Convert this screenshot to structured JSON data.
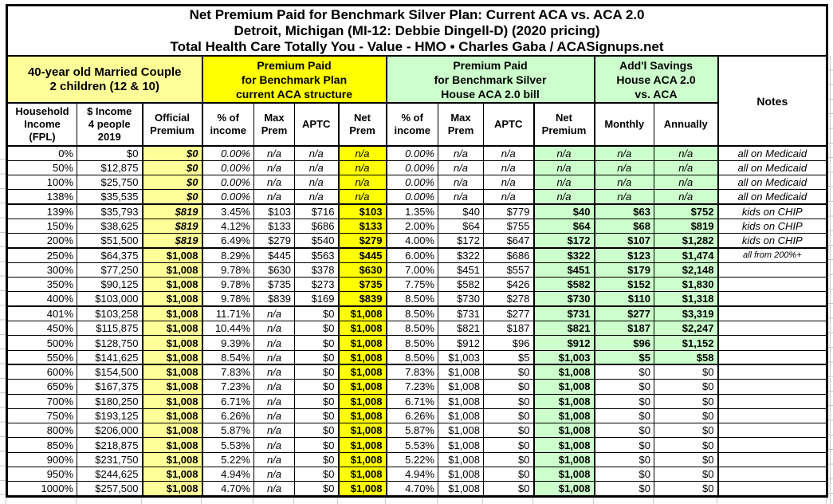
{
  "chart_data": {
    "type": "table",
    "title_lines": [
      "Net Premium Paid for Benchmark Silver Plan: Current ACA vs. ACA 2.0",
      "Detroit, Michigan (MI-12: Debbie Dingell-D) (2020 pricing)",
      "Total Health Care Totally You - Value - HMO • Charles Gaba / ACASignups.net"
    ],
    "group_headers": [
      {
        "key": "household",
        "label": "40-year old Married Couple\n2 children (12 & 10)"
      },
      {
        "key": "current-aca",
        "label": "Premium Paid\nfor Benchmark Plan\ncurrent ACA structure"
      },
      {
        "key": "aca2",
        "label": "Premium Paid\nfor Benchmark Silver\nHouse ACA 2.0 bill"
      },
      {
        "key": "savings",
        "label": "Add'l Savings\nHouse ACA 2.0\nvs. ACA"
      },
      {
        "key": "notes",
        "label": "Notes"
      }
    ],
    "columns": [
      {
        "key": "fpl",
        "label": "Household\nIncome\n(FPL)"
      },
      {
        "key": "income",
        "label": "$ Income\n4 people\n2019"
      },
      {
        "key": "official",
        "label": "Official\nPremium"
      },
      {
        "key": "aca-pct",
        "label": "% of\nincome"
      },
      {
        "key": "aca-max",
        "label": "Max\nPrem"
      },
      {
        "key": "aca-aptc",
        "label": "APTC"
      },
      {
        "key": "aca-net",
        "label": "Net\nPrem"
      },
      {
        "key": "aca2-pct",
        "label": "% of\nincome"
      },
      {
        "key": "aca2-max",
        "label": "Max\nPrem"
      },
      {
        "key": "aca2-aptc",
        "label": "APTC"
      },
      {
        "key": "aca2-net",
        "label": "Net\nPremium"
      },
      {
        "key": "monthly",
        "label": "Monthly"
      },
      {
        "key": "annually",
        "label": "Annually"
      }
    ],
    "colors": {
      "pale_yellow": "#FFFF99",
      "bright_yellow": "#FFFF00",
      "light_green": "#CCFFCC",
      "border": "#000000",
      "margin_gridline": "#C9C9C9"
    },
    "rows": [
      {
        "fpl": "0%",
        "income": "$0",
        "official": "$0",
        "official_italic": true,
        "aca": [
          "0.00%",
          "n/a",
          "n/a",
          "n/a"
        ],
        "aca2": [
          "0.00%",
          "n/a",
          "n/a",
          "n/a"
        ],
        "savings": [
          "n/a",
          "n/a"
        ],
        "notes": "all on Medicaid",
        "style": "medicaid",
        "thick_bottom": false,
        "notes_small": false
      },
      {
        "fpl": "50%",
        "income": "$12,875",
        "official": "$0",
        "official_italic": true,
        "aca": [
          "0.00%",
          "n/a",
          "n/a",
          "n/a"
        ],
        "aca2": [
          "0.00%",
          "n/a",
          "n/a",
          "n/a"
        ],
        "savings": [
          "n/a",
          "n/a"
        ],
        "notes": "all on Medicaid",
        "style": "medicaid",
        "thick_bottom": false,
        "notes_small": false
      },
      {
        "fpl": "100%",
        "income": "$25,750",
        "official": "$0",
        "official_italic": true,
        "aca": [
          "0.00%",
          "n/a",
          "n/a",
          "n/a"
        ],
        "aca2": [
          "0.00%",
          "n/a",
          "n/a",
          "n/a"
        ],
        "savings": [
          "n/a",
          "n/a"
        ],
        "notes": "all on Medicaid",
        "style": "medicaid",
        "thick_bottom": false,
        "notes_small": false
      },
      {
        "fpl": "138%",
        "income": "$35,535",
        "official": "$0",
        "official_italic": true,
        "aca": [
          "0.00%",
          "n/a",
          "n/a",
          "n/a"
        ],
        "aca2": [
          "0.00%",
          "n/a",
          "n/a",
          "n/a"
        ],
        "savings": [
          "n/a",
          "n/a"
        ],
        "notes": "all on Medicaid",
        "style": "medicaid",
        "thick_bottom": true,
        "notes_small": false
      },
      {
        "fpl": "139%",
        "income": "$35,793",
        "official": "$819",
        "official_italic": true,
        "aca": [
          "3.45%",
          "$103",
          "$716",
          "$103"
        ],
        "aca2": [
          "1.35%",
          "$40",
          "$779",
          "$40"
        ],
        "savings": [
          "$63",
          "$752"
        ],
        "notes": "kids on CHIP",
        "style": "chip",
        "thick_bottom": false,
        "notes_small": false
      },
      {
        "fpl": "150%",
        "income": "$38,625",
        "official": "$819",
        "official_italic": true,
        "aca": [
          "4.12%",
          "$133",
          "$686",
          "$133"
        ],
        "aca2": [
          "2.00%",
          "$64",
          "$755",
          "$64"
        ],
        "savings": [
          "$68",
          "$819"
        ],
        "notes": "kids on CHIP",
        "style": "chip",
        "thick_bottom": false,
        "notes_small": false
      },
      {
        "fpl": "200%",
        "income": "$51,500",
        "official": "$819",
        "official_italic": true,
        "aca": [
          "6.49%",
          "$279",
          "$540",
          "$279"
        ],
        "aca2": [
          "4.00%",
          "$172",
          "$647",
          "$172"
        ],
        "savings": [
          "$107",
          "$1,282"
        ],
        "notes": "kids on CHIP",
        "style": "chip",
        "thick_bottom": true,
        "notes_small": false
      },
      {
        "fpl": "250%",
        "income": "$64,375",
        "official": "$1,008",
        "official_italic": false,
        "aca": [
          "8.29%",
          "$445",
          "$563",
          "$445"
        ],
        "aca2": [
          "6.00%",
          "$322",
          "$686",
          "$322"
        ],
        "savings": [
          "$123",
          "$1,474"
        ],
        "notes": "all from 200%+",
        "style": "normal",
        "thick_bottom": false,
        "notes_small": true
      },
      {
        "fpl": "300%",
        "income": "$77,250",
        "official": "$1,008",
        "official_italic": false,
        "aca": [
          "9.78%",
          "$630",
          "$378",
          "$630"
        ],
        "aca2": [
          "7.00%",
          "$451",
          "$557",
          "$451"
        ],
        "savings": [
          "$179",
          "$2,148"
        ],
        "notes": "",
        "style": "normal",
        "thick_bottom": false,
        "notes_small": false
      },
      {
        "fpl": "350%",
        "income": "$90,125",
        "official": "$1,008",
        "official_italic": false,
        "aca": [
          "9.78%",
          "$735",
          "$273",
          "$735"
        ],
        "aca2": [
          "7.75%",
          "$582",
          "$426",
          "$582"
        ],
        "savings": [
          "$152",
          "$1,830"
        ],
        "notes": "",
        "style": "normal",
        "thick_bottom": false,
        "notes_small": false
      },
      {
        "fpl": "400%",
        "income": "$103,000",
        "official": "$1,008",
        "official_italic": false,
        "aca": [
          "9.78%",
          "$839",
          "$169",
          "$839"
        ],
        "aca2": [
          "8.50%",
          "$730",
          "$278",
          "$730"
        ],
        "savings": [
          "$110",
          "$1,318"
        ],
        "notes": "",
        "style": "normal",
        "thick_bottom": true,
        "notes_small": false
      },
      {
        "fpl": "401%",
        "income": "$103,258",
        "official": "$1,008",
        "official_italic": false,
        "aca": [
          "11.71%",
          "n/a",
          "$0",
          "$1,008"
        ],
        "aca2": [
          "8.50%",
          "$731",
          "$277",
          "$731"
        ],
        "savings": [
          "$277",
          "$3,319"
        ],
        "notes": "",
        "style": "normal",
        "thick_bottom": false,
        "notes_small": false
      },
      {
        "fpl": "450%",
        "income": "$115,875",
        "official": "$1,008",
        "official_italic": false,
        "aca": [
          "10.44%",
          "n/a",
          "$0",
          "$1,008"
        ],
        "aca2": [
          "8.50%",
          "$821",
          "$187",
          "$821"
        ],
        "savings": [
          "$187",
          "$2,247"
        ],
        "notes": "",
        "style": "normal",
        "thick_bottom": false,
        "notes_small": false
      },
      {
        "fpl": "500%",
        "income": "$128,750",
        "official": "$1,008",
        "official_italic": false,
        "aca": [
          "9.39%",
          "n/a",
          "$0",
          "$1,008"
        ],
        "aca2": [
          "8.50%",
          "$912",
          "$96",
          "$912"
        ],
        "savings": [
          "$96",
          "$1,152"
        ],
        "notes": "",
        "style": "normal",
        "thick_bottom": false,
        "notes_small": false
      },
      {
        "fpl": "550%",
        "income": "$141,625",
        "official": "$1,008",
        "official_italic": false,
        "aca": [
          "8.54%",
          "n/a",
          "$0",
          "$1,008"
        ],
        "aca2": [
          "8.50%",
          "$1,003",
          "$5",
          "$1,003"
        ],
        "savings": [
          "$5",
          "$58"
        ],
        "notes": "",
        "style": "normal",
        "thick_bottom": true,
        "notes_small": false
      },
      {
        "fpl": "600%",
        "income": "$154,500",
        "official": "$1,008",
        "official_italic": false,
        "aca": [
          "7.83%",
          "n/a",
          "$0",
          "$1,008"
        ],
        "aca2": [
          "7.83%",
          "$1,008",
          "$0",
          "$1,008"
        ],
        "savings": [
          "$0",
          "$0"
        ],
        "notes": "",
        "style": "zero",
        "thick_bottom": false,
        "notes_small": false
      },
      {
        "fpl": "650%",
        "income": "$167,375",
        "official": "$1,008",
        "official_italic": false,
        "aca": [
          "7.23%",
          "n/a",
          "$0",
          "$1,008"
        ],
        "aca2": [
          "7.23%",
          "$1,008",
          "$0",
          "$1,008"
        ],
        "savings": [
          "$0",
          "$0"
        ],
        "notes": "",
        "style": "zero",
        "thick_bottom": false,
        "notes_small": false
      },
      {
        "fpl": "700%",
        "income": "$180,250",
        "official": "$1,008",
        "official_italic": false,
        "aca": [
          "6.71%",
          "n/a",
          "$0",
          "$1,008"
        ],
        "aca2": [
          "6.71%",
          "$1,008",
          "$0",
          "$1,008"
        ],
        "savings": [
          "$0",
          "$0"
        ],
        "notes": "",
        "style": "zero",
        "thick_bottom": false,
        "notes_small": false
      },
      {
        "fpl": "750%",
        "income": "$193,125",
        "official": "$1,008",
        "official_italic": false,
        "aca": [
          "6.26%",
          "n/a",
          "$0",
          "$1,008"
        ],
        "aca2": [
          "6.26%",
          "$1,008",
          "$0",
          "$1,008"
        ],
        "savings": [
          "$0",
          "$0"
        ],
        "notes": "",
        "style": "zero",
        "thick_bottom": false,
        "notes_small": false
      },
      {
        "fpl": "800%",
        "income": "$206,000",
        "official": "$1,008",
        "official_italic": false,
        "aca": [
          "5.87%",
          "n/a",
          "$0",
          "$1,008"
        ],
        "aca2": [
          "5.87%",
          "$1,008",
          "$0",
          "$1,008"
        ],
        "savings": [
          "$0",
          "$0"
        ],
        "notes": "",
        "style": "zero",
        "thick_bottom": false,
        "notes_small": false
      },
      {
        "fpl": "850%",
        "income": "$218,875",
        "official": "$1,008",
        "official_italic": false,
        "aca": [
          "5.53%",
          "n/a",
          "$0",
          "$1,008"
        ],
        "aca2": [
          "5.53%",
          "$1,008",
          "$0",
          "$1,008"
        ],
        "savings": [
          "$0",
          "$0"
        ],
        "notes": "",
        "style": "zero",
        "thick_bottom": false,
        "notes_small": false
      },
      {
        "fpl": "900%",
        "income": "$231,750",
        "official": "$1,008",
        "official_italic": false,
        "aca": [
          "5.22%",
          "n/a",
          "$0",
          "$1,008"
        ],
        "aca2": [
          "5.22%",
          "$1,008",
          "$0",
          "$1,008"
        ],
        "savings": [
          "$0",
          "$0"
        ],
        "notes": "",
        "style": "zero",
        "thick_bottom": false,
        "notes_small": false
      },
      {
        "fpl": "950%",
        "income": "$244,625",
        "official": "$1,008",
        "official_italic": false,
        "aca": [
          "4.94%",
          "n/a",
          "$0",
          "$1,008"
        ],
        "aca2": [
          "4.94%",
          "$1,008",
          "$0",
          "$1,008"
        ],
        "savings": [
          "$0",
          "$0"
        ],
        "notes": "",
        "style": "zero",
        "thick_bottom": false,
        "notes_small": false
      },
      {
        "fpl": "1000%",
        "income": "$257,500",
        "official": "$1,008",
        "official_italic": false,
        "aca": [
          "4.70%",
          "n/a",
          "$0",
          "$1,008"
        ],
        "aca2": [
          "4.70%",
          "$1,008",
          "$0",
          "$1,008"
        ],
        "savings": [
          "$0",
          "$0"
        ],
        "notes": "",
        "style": "zero",
        "thick_bottom": false,
        "notes_small": false
      }
    ]
  }
}
